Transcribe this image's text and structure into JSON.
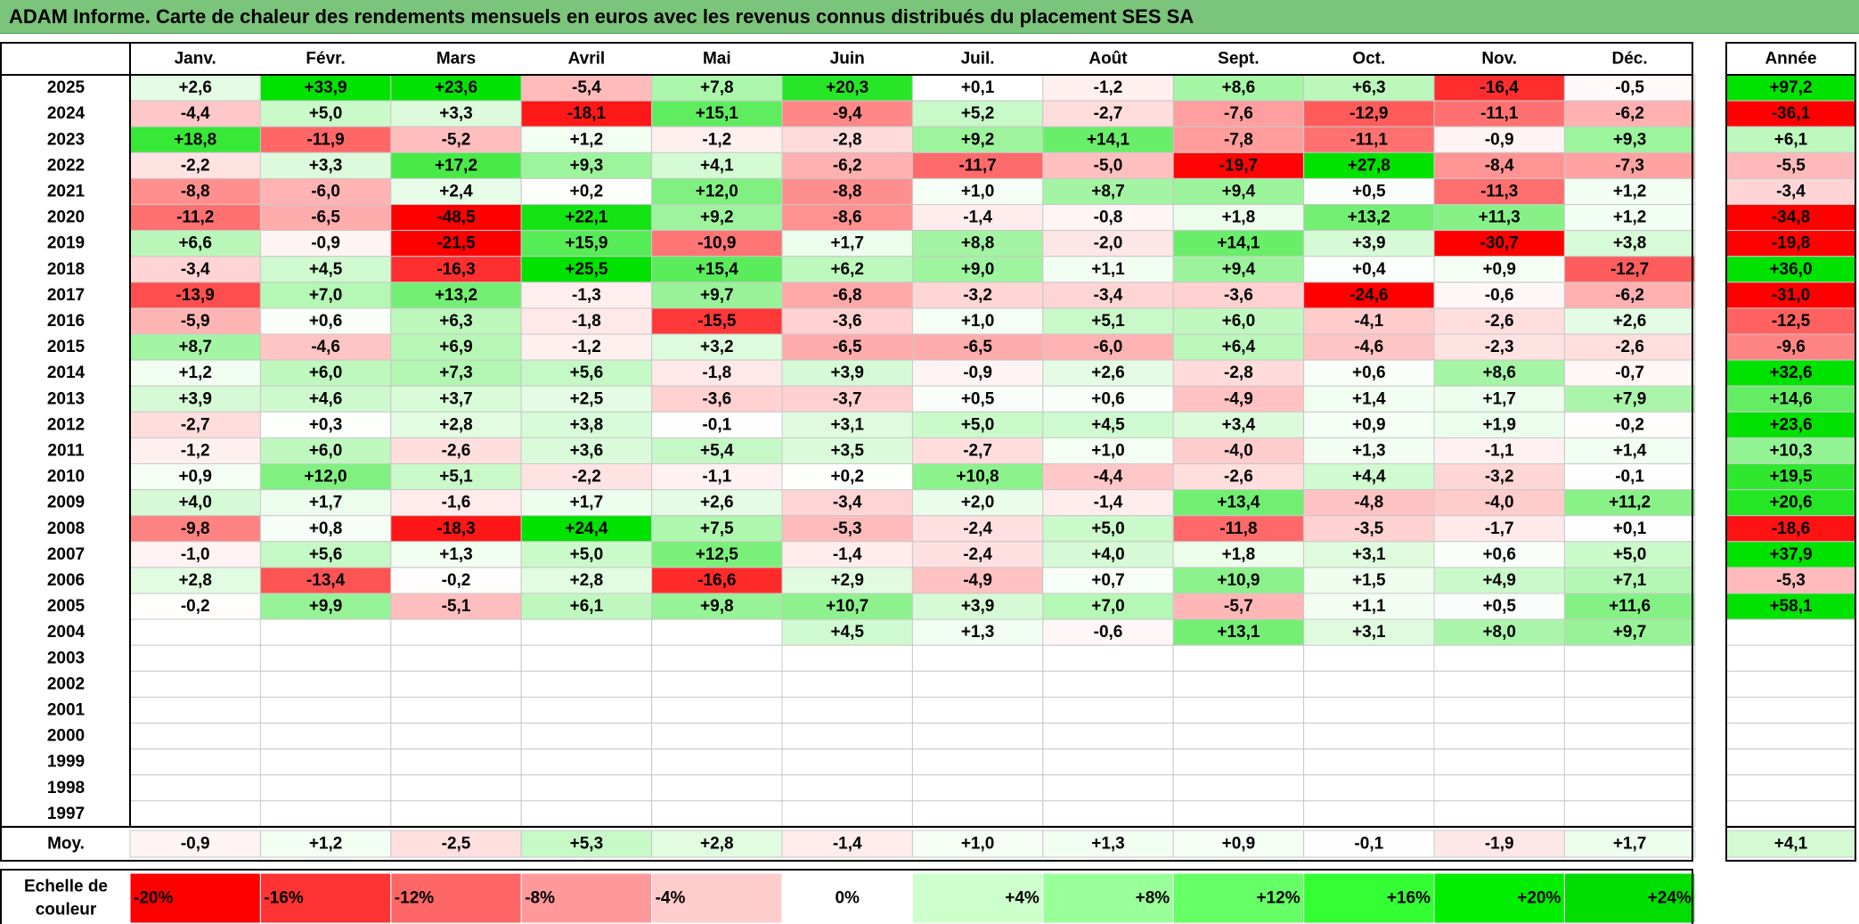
{
  "title": "ADAM Informe. Carte de chaleur des rendements mensuels en euros avec les revenus connus distribués du placement SES SA",
  "chart_data": {
    "type": "heatmap",
    "months": [
      "Janv.",
      "Févr.",
      "Mars",
      "Avril",
      "Mai",
      "Juin",
      "Juil.",
      "Août",
      "Sept.",
      "Oct.",
      "Nov.",
      "Déc."
    ],
    "year_header": "Année",
    "rows": [
      {
        "year": "2025",
        "values": [
          "+2,6",
          "+33,9",
          "+23,6",
          "-5,4",
          "+7,8",
          "+20,3",
          "+0,1",
          "-1,2",
          "+8,6",
          "+6,3",
          "-16,4",
          "-0,5"
        ],
        "annual": "+97,2"
      },
      {
        "year": "2024",
        "values": [
          "-4,4",
          "+5,0",
          "+3,3",
          "-18,1",
          "+15,1",
          "-9,4",
          "+5,2",
          "-2,7",
          "-7,6",
          "-12,9",
          "-11,1",
          "-6,2"
        ],
        "annual": "-36,1"
      },
      {
        "year": "2023",
        "values": [
          "+18,8",
          "-11,9",
          "-5,2",
          "+1,2",
          "-1,2",
          "-2,8",
          "+9,2",
          "+14,1",
          "-7,8",
          "-11,1",
          "-0,9",
          "+9,3"
        ],
        "annual": "+6,1"
      },
      {
        "year": "2022",
        "values": [
          "-2,2",
          "+3,3",
          "+17,2",
          "+9,3",
          "+4,1",
          "-6,2",
          "-11,7",
          "-5,0",
          "-19,7",
          "+27,8",
          "-8,4",
          "-7,3"
        ],
        "annual": "-5,5"
      },
      {
        "year": "2021",
        "values": [
          "-8,8",
          "-6,0",
          "+2,4",
          "+0,2",
          "+12,0",
          "-8,8",
          "+1,0",
          "+8,7",
          "+9,4",
          "+0,5",
          "-11,3",
          "+1,2"
        ],
        "annual": "-3,4"
      },
      {
        "year": "2020",
        "values": [
          "-11,2",
          "-6,5",
          "-48,5",
          "+22,1",
          "+9,2",
          "-8,6",
          "-1,4",
          "-0,8",
          "+1,8",
          "+13,2",
          "+11,3",
          "+1,2"
        ],
        "annual": "-34,8"
      },
      {
        "year": "2019",
        "values": [
          "+6,6",
          "-0,9",
          "-21,5",
          "+15,9",
          "-10,9",
          "+1,7",
          "+8,8",
          "-2,0",
          "+14,1",
          "+3,9",
          "-30,7",
          "+3,8"
        ],
        "annual": "-19,8"
      },
      {
        "year": "2018",
        "values": [
          "-3,4",
          "+4,5",
          "-16,3",
          "+25,5",
          "+15,4",
          "+6,2",
          "+9,0",
          "+1,1",
          "+9,4",
          "+0,4",
          "+0,9",
          "-12,7"
        ],
        "annual": "+36,0"
      },
      {
        "year": "2017",
        "values": [
          "-13,9",
          "+7,0",
          "+13,2",
          "-1,3",
          "+9,7",
          "-6,8",
          "-3,2",
          "-3,4",
          "-3,6",
          "-24,6",
          "-0,6",
          "-6,2"
        ],
        "annual": "-31,0"
      },
      {
        "year": "2016",
        "values": [
          "-5,9",
          "+0,6",
          "+6,3",
          "-1,8",
          "-15,5",
          "-3,6",
          "+1,0",
          "+5,1",
          "+6,0",
          "-4,1",
          "-2,6",
          "+2,6"
        ],
        "annual": "-12,5"
      },
      {
        "year": "2015",
        "values": [
          "+8,7",
          "-4,6",
          "+6,9",
          "-1,2",
          "+3,2",
          "-6,5",
          "-6,5",
          "-6,0",
          "+6,4",
          "-4,6",
          "-2,3",
          "-2,6"
        ],
        "annual": "-9,6"
      },
      {
        "year": "2014",
        "values": [
          "+1,2",
          "+6,0",
          "+7,3",
          "+5,6",
          "-1,8",
          "+3,9",
          "-0,9",
          "+2,6",
          "-2,8",
          "+0,6",
          "+8,6",
          "-0,7"
        ],
        "annual": "+32,6"
      },
      {
        "year": "2013",
        "values": [
          "+3,9",
          "+4,6",
          "+3,7",
          "+2,5",
          "-3,6",
          "-3,7",
          "+0,5",
          "+0,6",
          "-4,9",
          "+1,4",
          "+1,7",
          "+7,9"
        ],
        "annual": "+14,6"
      },
      {
        "year": "2012",
        "values": [
          "-2,7",
          "+0,3",
          "+2,8",
          "+3,8",
          "-0,1",
          "+3,1",
          "+5,0",
          "+4,5",
          "+3,4",
          "+0,9",
          "+1,9",
          "-0,2"
        ],
        "annual": "+23,6"
      },
      {
        "year": "2011",
        "values": [
          "-1,2",
          "+6,0",
          "-2,6",
          "+3,6",
          "+5,4",
          "+3,5",
          "-2,7",
          "+1,0",
          "-4,0",
          "+1,3",
          "-1,1",
          "+1,4"
        ],
        "annual": "+10,3"
      },
      {
        "year": "2010",
        "values": [
          "+0,9",
          "+12,0",
          "+5,1",
          "-2,2",
          "-1,1",
          "+0,2",
          "+10,8",
          "-4,4",
          "-2,6",
          "+4,4",
          "-3,2",
          "-0,1"
        ],
        "annual": "+19,5"
      },
      {
        "year": "2009",
        "values": [
          "+4,0",
          "+1,7",
          "-1,6",
          "+1,7",
          "+2,6",
          "-3,4",
          "+2,0",
          "-1,4",
          "+13,4",
          "-4,8",
          "-4,0",
          "+11,2"
        ],
        "annual": "+20,6"
      },
      {
        "year": "2008",
        "values": [
          "-9,8",
          "+0,8",
          "-18,3",
          "+24,4",
          "+7,5",
          "-5,3",
          "-2,4",
          "+5,0",
          "-11,8",
          "-3,5",
          "-1,7",
          "+0,1"
        ],
        "annual": "-18,6"
      },
      {
        "year": "2007",
        "values": [
          "-1,0",
          "+5,6",
          "+1,3",
          "+5,0",
          "+12,5",
          "-1,4",
          "-2,4",
          "+4,0",
          "+1,8",
          "+3,1",
          "+0,6",
          "+5,0"
        ],
        "annual": "+37,9"
      },
      {
        "year": "2006",
        "values": [
          "+2,8",
          "-13,4",
          "-0,2",
          "+2,8",
          "-16,6",
          "+2,9",
          "-4,9",
          "+0,7",
          "+10,9",
          "+1,5",
          "+4,9",
          "+7,1"
        ],
        "annual": "-5,3"
      },
      {
        "year": "2005",
        "values": [
          "-0,2",
          "+9,9",
          "-5,1",
          "+6,1",
          "+9,8",
          "+10,7",
          "+3,9",
          "+7,0",
          "-5,7",
          "+1,1",
          "+0,5",
          "+11,6"
        ],
        "annual": "+58,1"
      },
      {
        "year": "2004",
        "values": [
          "",
          "",
          "",
          "",
          "",
          "+4,5",
          "+1,3",
          "-0,6",
          "+13,1",
          "+3,1",
          "+8,0",
          "+9,7"
        ],
        "annual": ""
      },
      {
        "year": "2003",
        "values": [
          "",
          "",
          "",
          "",
          "",
          "",
          "",
          "",
          "",
          "",
          "",
          ""
        ],
        "annual": ""
      },
      {
        "year": "2002",
        "values": [
          "",
          "",
          "",
          "",
          "",
          "",
          "",
          "",
          "",
          "",
          "",
          ""
        ],
        "annual": ""
      },
      {
        "year": "2001",
        "values": [
          "",
          "",
          "",
          "",
          "",
          "",
          "",
          "",
          "",
          "",
          "",
          ""
        ],
        "annual": ""
      },
      {
        "year": "2000",
        "values": [
          "",
          "",
          "",
          "",
          "",
          "",
          "",
          "",
          "",
          "",
          "",
          ""
        ],
        "annual": ""
      },
      {
        "year": "1999",
        "values": [
          "",
          "",
          "",
          "",
          "",
          "",
          "",
          "",
          "",
          "",
          "",
          ""
        ],
        "annual": ""
      },
      {
        "year": "1998",
        "values": [
          "",
          "",
          "",
          "",
          "",
          "",
          "",
          "",
          "",
          "",
          "",
          ""
        ],
        "annual": ""
      },
      {
        "year": "1997",
        "values": [
          "",
          "",
          "",
          "",
          "",
          "",
          "",
          "",
          "",
          "",
          "",
          ""
        ],
        "annual": ""
      }
    ],
    "average": {
      "label": "Moy.",
      "values": [
        "-0,9",
        "+1,2",
        "-2,5",
        "+5,3",
        "+2,8",
        "-1,4",
        "+1,0",
        "+1,3",
        "+0,9",
        "-0,1",
        "-1,9",
        "+1,7"
      ],
      "annual": "+4,1"
    },
    "color_scale": {
      "label_line1": "Echelle de",
      "label_line2": "couleur",
      "steps": [
        {
          "label": "-20%",
          "value": -20,
          "color": "#ff0000"
        },
        {
          "label": "-16%",
          "value": -16,
          "color": "#ff3333"
        },
        {
          "label": "-12%",
          "value": -12,
          "color": "#ff6666"
        },
        {
          "label": "-8%",
          "value": -8,
          "color": "#ff9999"
        },
        {
          "label": "-4%",
          "value": -4,
          "color": "#ffcccc"
        },
        {
          "label": "0%",
          "value": 0,
          "color": "#ffffff"
        },
        {
          "label": "+4%",
          "value": 4,
          "color": "#ccffcc"
        },
        {
          "label": "+8%",
          "value": 8,
          "color": "#99ff99"
        },
        {
          "label": "+12%",
          "value": 12,
          "color": "#66ff66"
        },
        {
          "label": "+16%",
          "value": 16,
          "color": "#33ff33"
        },
        {
          "label": "+20%",
          "value": 20,
          "color": "#00ee00"
        },
        {
          "label": "+24%",
          "value": 24,
          "color": "#00dd00"
        }
      ]
    }
  },
  "colors": {
    "title_bar": "#7bc47b",
    "grid_line": "#c8c8c8",
    "border": "#000000"
  }
}
